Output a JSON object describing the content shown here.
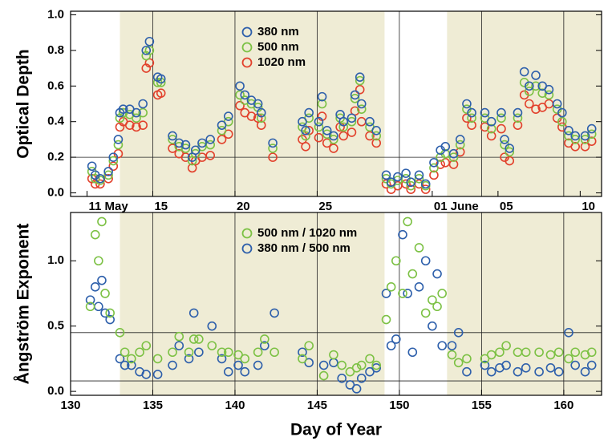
{
  "chart_data": [
    {
      "type": "scatter",
      "ylabel": "Optical Depth",
      "xlim": [
        130,
        162.3
      ],
      "ylim": [
        -0.02,
        1.02
      ],
      "yticks": [
        {
          "value": 0,
          "label": "0.0"
        },
        0.2,
        0.4,
        0.6,
        0.8,
        {
          "value": 1,
          "label": "1.0"
        }
      ],
      "xticks": [
        {
          "value": 131,
          "label": "11 May"
        },
        {
          "value": 135,
          "label": "15"
        },
        {
          "value": 140,
          "label": "20"
        },
        {
          "value": 145,
          "label": "25"
        },
        {
          "value": 152,
          "label": "01 June"
        },
        {
          "value": 156,
          "label": "05"
        },
        {
          "value": 161,
          "label": "10"
        }
      ],
      "vlines": [
        135,
        140,
        145,
        150,
        155,
        160
      ],
      "hlines": [
        0.2
      ],
      "shaded_ranges": [
        [
          133,
          149.1
        ],
        [
          152.9,
          162.3
        ]
      ],
      "shade_color": "#efecd5",
      "legend": "top-center",
      "x": [
        131.3,
        131.5,
        131.8,
        132.3,
        132.6,
        132.9,
        133.0,
        133.2,
        133.6,
        134.0,
        134.4,
        134.6,
        134.8,
        135.3,
        135.5,
        136.2,
        136.6,
        137.0,
        137.4,
        137.6,
        138.0,
        138.5,
        139.2,
        139.6,
        140.3,
        140.6,
        141.0,
        141.4,
        141.6,
        142.3,
        144.1,
        144.3,
        144.5,
        145.1,
        145.3,
        145.6,
        146.0,
        146.4,
        146.6,
        147.1,
        147.3,
        147.6,
        147.7,
        148.2,
        148.6,
        149.2,
        149.5,
        149.9,
        150.4,
        150.7,
        151.2,
        151.6,
        152.1,
        152.5,
        152.8,
        153.3,
        153.7,
        154.1,
        154.4,
        155.2,
        155.6,
        156.2,
        156.4,
        156.7,
        157.2,
        157.6,
        157.9,
        158.3,
        158.7,
        159.1,
        159.6,
        159.9,
        160.3,
        160.7,
        161.3,
        161.7
      ],
      "series": [
        {
          "name": "1020 nm",
          "color": "#e2412c",
          "values": [
            0.08,
            0.05,
            0.05,
            0.08,
            0.15,
            0.22,
            0.37,
            0.4,
            0.38,
            0.37,
            0.38,
            0.7,
            0.73,
            0.55,
            0.56,
            0.25,
            0.22,
            0.2,
            0.14,
            0.18,
            0.2,
            0.21,
            0.3,
            0.33,
            0.49,
            0.45,
            0.43,
            0.42,
            0.38,
            0.2,
            0.3,
            0.26,
            0.35,
            0.31,
            0.43,
            0.28,
            0.25,
            0.37,
            0.32,
            0.34,
            0.46,
            0.58,
            0.4,
            0.32,
            0.28,
            0.05,
            0.02,
            0.04,
            0.05,
            0.02,
            0.05,
            0.02,
            0.1,
            0.16,
            0.17,
            0.16,
            0.23,
            0.42,
            0.38,
            0.37,
            0.32,
            0.36,
            0.2,
            0.18,
            0.38,
            0.55,
            0.5,
            0.47,
            0.48,
            0.5,
            0.42,
            0.37,
            0.28,
            0.26,
            0.26,
            0.29
          ]
        },
        {
          "name": "500 nm",
          "color": "#7cc144",
          "values": [
            0.12,
            0.08,
            0.07,
            0.1,
            0.18,
            0.27,
            0.42,
            0.45,
            0.44,
            0.42,
            0.45,
            0.77,
            0.8,
            0.62,
            0.62,
            0.3,
            0.26,
            0.25,
            0.18,
            0.22,
            0.26,
            0.27,
            0.35,
            0.4,
            0.55,
            0.52,
            0.5,
            0.48,
            0.42,
            0.25,
            0.37,
            0.32,
            0.42,
            0.37,
            0.5,
            0.33,
            0.3,
            0.42,
            0.37,
            0.4,
            0.53,
            0.63,
            0.47,
            0.37,
            0.32,
            0.08,
            0.05,
            0.07,
            0.08,
            0.04,
            0.08,
            0.04,
            0.14,
            0.2,
            0.22,
            0.2,
            0.27,
            0.47,
            0.42,
            0.42,
            0.36,
            0.42,
            0.27,
            0.23,
            0.42,
            0.62,
            0.57,
            0.6,
            0.56,
            0.55,
            0.47,
            0.4,
            0.32,
            0.3,
            0.3,
            0.33
          ]
        },
        {
          "name": "380 nm",
          "color": "#2d5fab",
          "values": [
            0.15,
            0.1,
            0.08,
            0.12,
            0.2,
            0.3,
            0.45,
            0.47,
            0.47,
            0.45,
            0.5,
            0.8,
            0.85,
            0.65,
            0.64,
            0.32,
            0.28,
            0.27,
            0.2,
            0.24,
            0.28,
            0.3,
            0.38,
            0.43,
            0.6,
            0.55,
            0.52,
            0.5,
            0.45,
            0.28,
            0.4,
            0.35,
            0.45,
            0.4,
            0.54,
            0.35,
            0.32,
            0.44,
            0.4,
            0.42,
            0.55,
            0.65,
            0.5,
            0.4,
            0.35,
            0.1,
            0.06,
            0.09,
            0.11,
            0.06,
            0.1,
            0.05,
            0.17,
            0.24,
            0.26,
            0.22,
            0.3,
            0.5,
            0.45,
            0.45,
            0.4,
            0.45,
            0.3,
            0.25,
            0.45,
            0.68,
            0.6,
            0.66,
            0.6,
            0.58,
            0.5,
            0.45,
            0.35,
            0.32,
            0.32,
            0.36
          ]
        }
      ]
    },
    {
      "type": "scatter",
      "ylabel": "Ångström Exponent",
      "xlabel": "Day of Year",
      "xlim": [
        130,
        162.3
      ],
      "ylim": [
        -0.03,
        1.37
      ],
      "yticks": [
        {
          "value": 0,
          "label": "0.0"
        },
        0.5,
        {
          "value": 1,
          "label": "1.0"
        }
      ],
      "xticks": [
        130,
        135,
        140,
        145,
        150,
        155,
        160
      ],
      "vlines": [
        135,
        140,
        145,
        150,
        155,
        160
      ],
      "hlines": [
        0.45,
        0.08
      ],
      "shaded_ranges": [
        [
          133,
          149.1
        ],
        [
          152.9,
          162.3
        ]
      ],
      "shade_color": "#efecd5",
      "legend": "top-center",
      "x": [
        131.2,
        131.5,
        131.7,
        131.9,
        132.1,
        132.4,
        133.0,
        133.3,
        133.7,
        134.2,
        134.6,
        135.3,
        136.2,
        136.6,
        137.2,
        137.5,
        137.8,
        138.6,
        139.2,
        139.6,
        140.2,
        140.6,
        141.4,
        141.8,
        142.4,
        144.1,
        144.5,
        145.4,
        146.0,
        146.5,
        147.0,
        147.4,
        147.7,
        148.2,
        148.6,
        149.2,
        149.5,
        149.8,
        150.2,
        150.5,
        150.8,
        151.2,
        151.6,
        152.0,
        152.3,
        152.6,
        153.2,
        153.6,
        154.1,
        155.2,
        155.6,
        156.1,
        156.5,
        157.2,
        157.7,
        158.5,
        159.2,
        159.7,
        160.3,
        160.7,
        161.3,
        161.7
      ],
      "series": [
        {
          "name": "380 nm / 500 nm",
          "color": "#2d5fab",
          "values": [
            0.7,
            0.8,
            0.65,
            0.85,
            0.6,
            0.55,
            0.25,
            0.2,
            0.2,
            0.15,
            0.13,
            0.13,
            0.2,
            0.35,
            0.25,
            0.6,
            0.3,
            0.5,
            0.25,
            0.15,
            0.2,
            0.15,
            0.2,
            0.35,
            0.6,
            0.3,
            0.22,
            0.2,
            0.22,
            0.1,
            0.05,
            0.02,
            0.1,
            0.15,
            0.18,
            0.75,
            0.35,
            0.4,
            1.2,
            0.75,
            0.3,
            0.8,
            1.0,
            0.5,
            0.9,
            0.35,
            0.35,
            0.45,
            0.15,
            0.2,
            0.15,
            0.18,
            0.2,
            0.15,
            0.18,
            0.15,
            0.18,
            0.15,
            0.45,
            0.2,
            0.15,
            0.2
          ]
        },
        {
          "name": "500 nm / 1020 nm",
          "color": "#7cc144",
          "values": [
            0.65,
            1.2,
            1.0,
            1.3,
            0.75,
            0.6,
            0.45,
            0.3,
            0.25,
            0.3,
            0.35,
            0.25,
            0.3,
            0.42,
            0.3,
            0.4,
            0.4,
            0.35,
            0.3,
            0.3,
            0.28,
            0.25,
            0.3,
            0.4,
            0.3,
            0.25,
            0.35,
            0.12,
            0.28,
            0.2,
            0.15,
            0.18,
            0.2,
            0.25,
            0.2,
            0.55,
            0.8,
            1.0,
            0.75,
            1.3,
            0.9,
            1.1,
            0.6,
            0.7,
            0.65,
            0.75,
            0.28,
            0.22,
            0.25,
            0.25,
            0.28,
            0.3,
            0.35,
            0.3,
            0.3,
            0.3,
            0.28,
            0.3,
            0.25,
            0.3,
            0.28,
            0.3
          ]
        }
      ]
    }
  ]
}
